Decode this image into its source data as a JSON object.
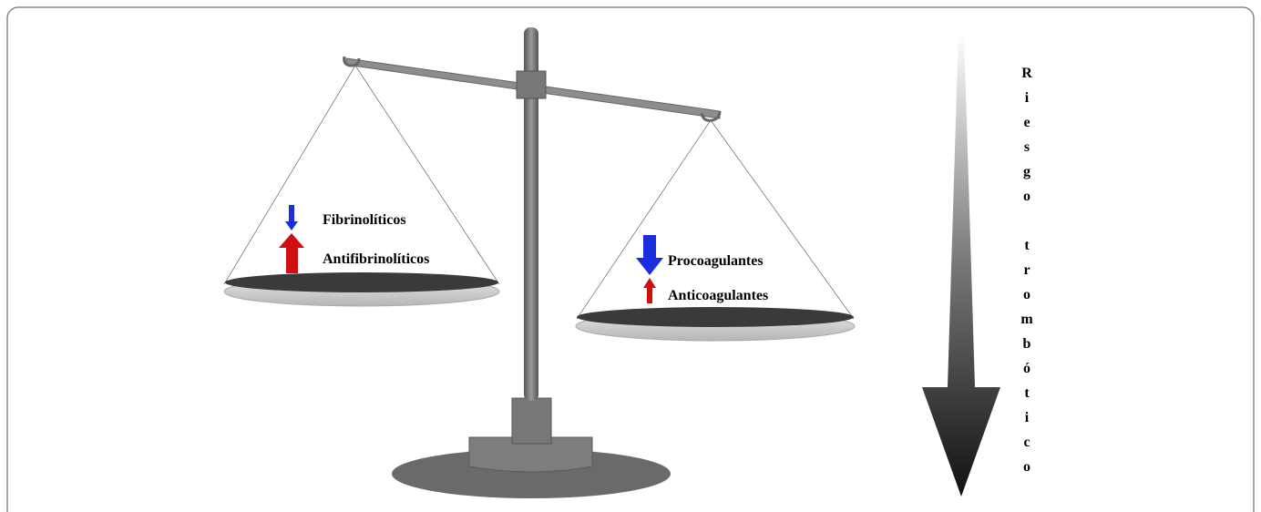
{
  "left_pan": {
    "labels": [
      "Fibrinolíticos",
      "Antifibrinolíticos"
    ]
  },
  "right_pan": {
    "labels": [
      "Procoagulantes",
      "Anticoagulantes"
    ]
  },
  "risk_arrow": {
    "label": "Riesgo trombótico"
  }
}
